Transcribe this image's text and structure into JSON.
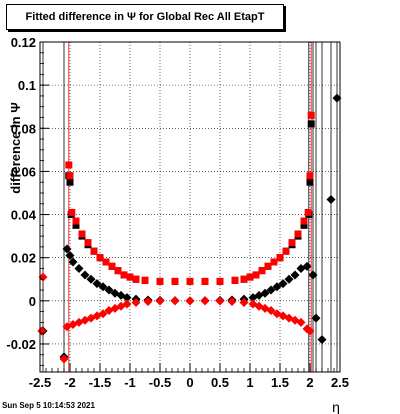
{
  "chart_data": {
    "type": "scatter",
    "title": "Fitted difference in  Ψ  for Global Rec All EtapT",
    "ylabel": "difference in  Ψ",
    "xlabel": "η",
    "xlim": [
      -2.5,
      2.5
    ],
    "ylim": [
      -0.033,
      0.12
    ],
    "xticks": [
      "-2.5",
      "-2",
      "-1.5",
      "-1",
      "-0.5",
      "0",
      "0.5",
      "1",
      "1.5",
      "2",
      "2.5"
    ],
    "xtick_values": [
      -2.5,
      -2,
      -1.5,
      -1,
      -0.5,
      0,
      0.5,
      1,
      1.5,
      2,
      2.5
    ],
    "yticks": [
      "-0.02",
      "0",
      "0.02",
      "0.04",
      "0.06",
      "0.08",
      "0.1",
      "0.12"
    ],
    "ytick_values": [
      -0.02,
      0,
      0.02,
      0.04,
      0.06,
      0.08,
      0.1,
      0.12
    ],
    "grid": true,
    "colors": {
      "black": "#000000",
      "red": "#ff0000"
    },
    "series": [
      {
        "marker": "square",
        "color": "#000000",
        "points": [
          [
            -2.02,
            0.058
          ],
          [
            -2.0,
            0.055
          ],
          [
            -1.98,
            0.04
          ],
          [
            -1.9,
            0.035
          ],
          [
            -1.8,
            0.03
          ],
          [
            -1.7,
            0.026
          ],
          [
            -1.6,
            0.023
          ],
          [
            -1.5,
            0.02
          ],
          [
            -1.4,
            0.018
          ],
          [
            -1.3,
            0.016
          ],
          [
            -1.2,
            0.014
          ],
          [
            -1.1,
            0.012
          ],
          [
            -1.0,
            0.011
          ],
          [
            -0.9,
            0.01
          ],
          [
            -0.75,
            0.0095
          ],
          [
            -0.5,
            0.009
          ],
          [
            -0.25,
            0.009
          ],
          [
            0,
            0.009
          ],
          [
            0.25,
            0.009
          ],
          [
            0.5,
            0.009
          ],
          [
            0.75,
            0.0095
          ],
          [
            0.9,
            0.01
          ],
          [
            1.0,
            0.011
          ],
          [
            1.1,
            0.012
          ],
          [
            1.2,
            0.014
          ],
          [
            1.3,
            0.016
          ],
          [
            1.4,
            0.018
          ],
          [
            1.5,
            0.02
          ],
          [
            1.6,
            0.023
          ],
          [
            1.7,
            0.026
          ],
          [
            1.8,
            0.03
          ],
          [
            1.9,
            0.035
          ],
          [
            1.98,
            0.04
          ],
          [
            2.0,
            0.055
          ],
          [
            2.02,
            0.082
          ]
        ]
      },
      {
        "marker": "square",
        "color": "#ff0000",
        "points": [
          [
            -2.02,
            0.063
          ],
          [
            -2.0,
            0.058
          ],
          [
            -1.97,
            0.041
          ],
          [
            -1.9,
            0.037
          ],
          [
            -1.8,
            0.031
          ],
          [
            -1.7,
            0.027
          ],
          [
            -1.6,
            0.023
          ],
          [
            -1.5,
            0.02
          ],
          [
            -1.4,
            0.018
          ],
          [
            -1.3,
            0.016
          ],
          [
            -1.2,
            0.014
          ],
          [
            -1.1,
            0.012
          ],
          [
            -1.0,
            0.011
          ],
          [
            -0.9,
            0.01
          ],
          [
            -0.75,
            0.0095
          ],
          [
            -0.5,
            0.009
          ],
          [
            -0.25,
            0.009
          ],
          [
            0,
            0.009
          ],
          [
            0.25,
            0.009
          ],
          [
            0.5,
            0.009
          ],
          [
            0.75,
            0.0095
          ],
          [
            0.9,
            0.01
          ],
          [
            1.0,
            0.011
          ],
          [
            1.1,
            0.012
          ],
          [
            1.2,
            0.014
          ],
          [
            1.3,
            0.016
          ],
          [
            1.4,
            0.018
          ],
          [
            1.5,
            0.02
          ],
          [
            1.6,
            0.023
          ],
          [
            1.7,
            0.027
          ],
          [
            1.8,
            0.031
          ],
          [
            1.9,
            0.037
          ],
          [
            1.97,
            0.041
          ],
          [
            2.0,
            0.058
          ],
          [
            2.02,
            0.086
          ]
        ]
      },
      {
        "marker": "diamond",
        "color": "#000000",
        "points": [
          [
            -2.45,
            -0.014
          ],
          [
            -2.1,
            -0.026
          ],
          [
            -2.05,
            0.024
          ],
          [
            -2.0,
            0.021
          ],
          [
            -1.95,
            0.018
          ],
          [
            -1.85,
            0.015
          ],
          [
            -1.75,
            0.012
          ],
          [
            -1.65,
            0.01
          ],
          [
            -1.55,
            0.008
          ],
          [
            -1.45,
            0.0065
          ],
          [
            -1.35,
            0.005
          ],
          [
            -1.25,
            0.0035
          ],
          [
            -1.15,
            0.0025
          ],
          [
            -1.05,
            0.0015
          ],
          [
            -0.9,
            0.0008
          ],
          [
            -0.7,
            0.0004
          ],
          [
            -0.5,
            0.0002
          ],
          [
            -0.25,
            0.0001
          ],
          [
            0,
            0.0
          ],
          [
            0.25,
            0.0001
          ],
          [
            0.5,
            0.0002
          ],
          [
            0.7,
            0.0004
          ],
          [
            0.9,
            0.0008
          ],
          [
            1.05,
            0.0015
          ],
          [
            1.15,
            0.0025
          ],
          [
            1.25,
            0.0035
          ],
          [
            1.35,
            0.005
          ],
          [
            1.45,
            0.0065
          ],
          [
            1.55,
            0.008
          ],
          [
            1.65,
            0.01
          ],
          [
            1.75,
            0.012
          ],
          [
            1.85,
            0.015
          ],
          [
            1.95,
            0.016
          ],
          [
            2.05,
            0.012
          ],
          [
            2.1,
            -0.008
          ],
          [
            2.2,
            -0.018
          ],
          [
            2.35,
            0.047
          ],
          [
            2.45,
            0.094
          ]
        ]
      },
      {
        "marker": "diamond",
        "color": "#ff0000",
        "points": [
          [
            -2.45,
            0.011
          ],
          [
            -2.47,
            -0.014
          ],
          [
            -2.1,
            -0.027
          ],
          [
            -2.05,
            -0.012
          ],
          [
            -1.95,
            -0.011
          ],
          [
            -1.85,
            -0.01
          ],
          [
            -1.75,
            -0.009
          ],
          [
            -1.65,
            -0.008
          ],
          [
            -1.55,
            -0.007
          ],
          [
            -1.45,
            -0.006
          ],
          [
            -1.35,
            -0.0045
          ],
          [
            -1.25,
            -0.0035
          ],
          [
            -1.15,
            -0.0025
          ],
          [
            -1.05,
            -0.0015
          ],
          [
            -0.9,
            -0.0008
          ],
          [
            -0.7,
            -0.0003
          ],
          [
            -0.5,
            -0.0001
          ],
          [
            -0.25,
            0.0
          ],
          [
            0,
            0.0
          ],
          [
            0.25,
            0.0
          ],
          [
            0.5,
            -0.0001
          ],
          [
            0.7,
            -0.0003
          ],
          [
            0.9,
            -0.0008
          ],
          [
            1.05,
            -0.0015
          ],
          [
            1.15,
            -0.0025
          ],
          [
            1.25,
            -0.0035
          ],
          [
            1.35,
            -0.0045
          ],
          [
            1.45,
            -0.006
          ],
          [
            1.55,
            -0.007
          ],
          [
            1.65,
            -0.008
          ],
          [
            1.75,
            -0.009
          ],
          [
            1.85,
            -0.01
          ],
          [
            1.95,
            -0.013
          ],
          [
            2.0,
            -0.014
          ]
        ]
      }
    ]
  },
  "footer": {
    "timestamp": "Sun Sep  5 10:14:53 2021"
  }
}
